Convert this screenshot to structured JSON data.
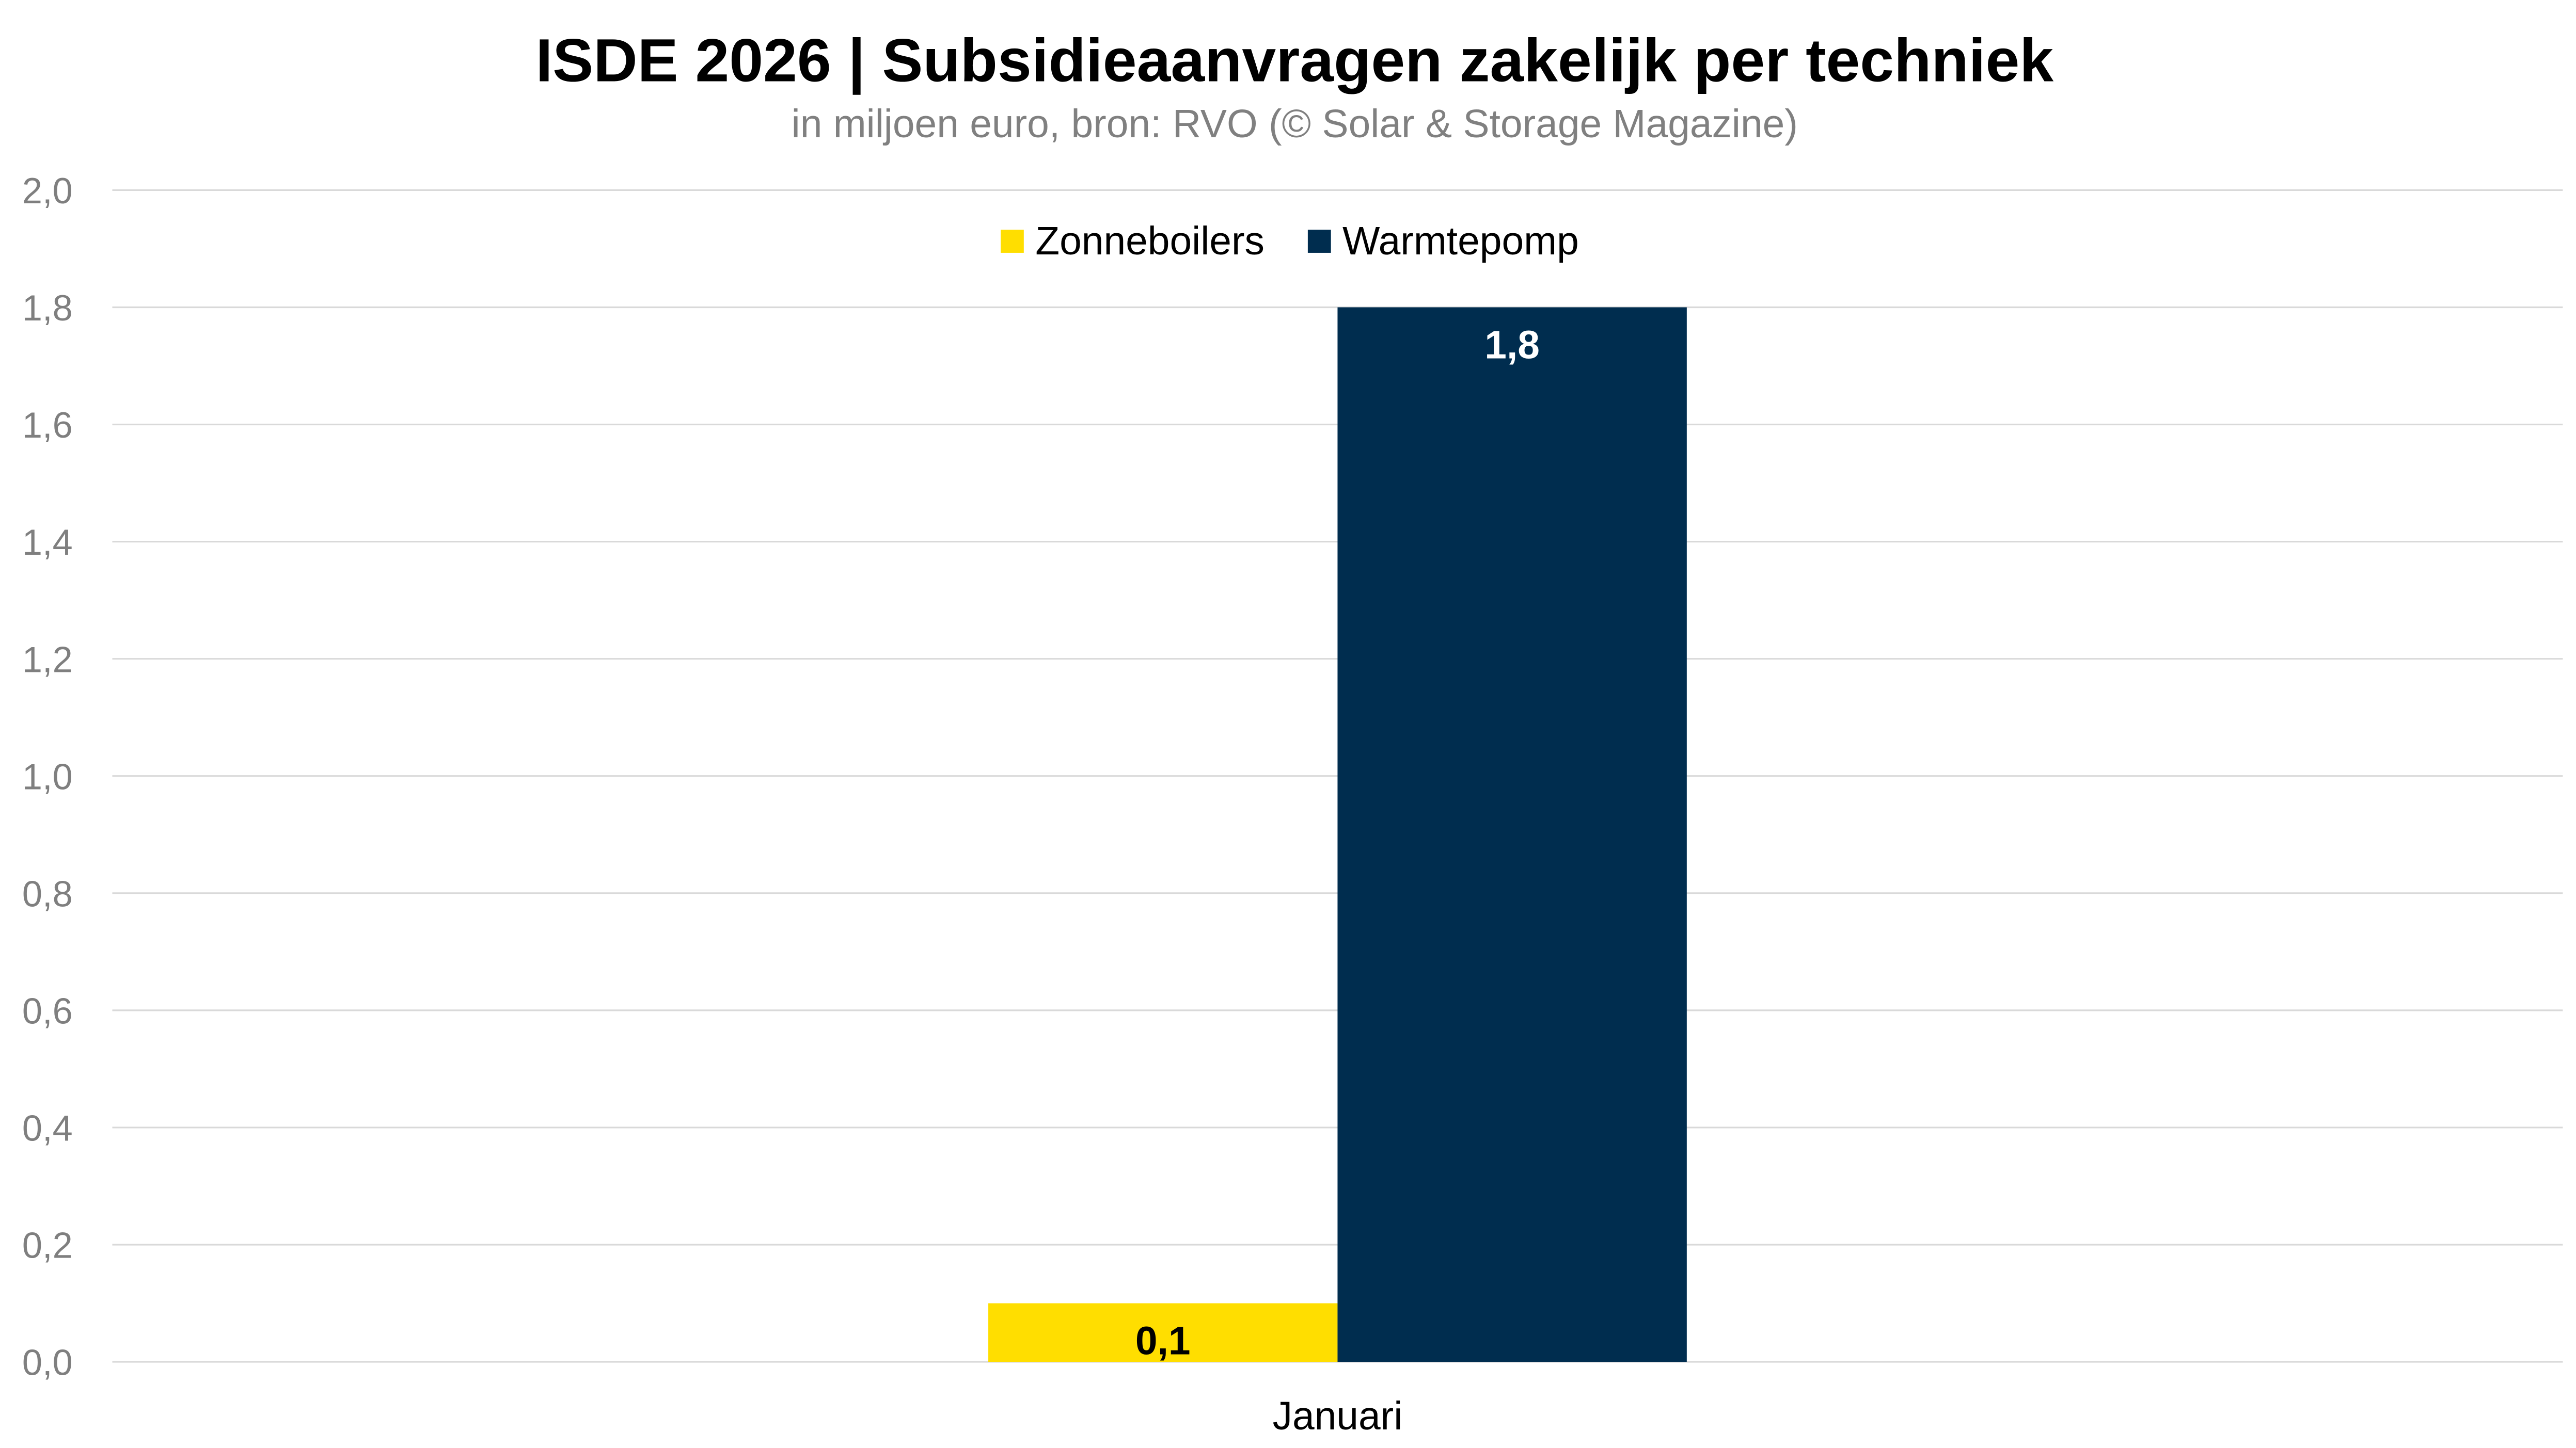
{
  "chart_data": {
    "type": "bar",
    "title": "ISDE 2026 | Subsidieaanvragen zakelijk per techniek",
    "subtitle": "in miljoen euro, bron: RVO (© Solar & Storage Magazine)",
    "xlabel": "",
    "ylabel": "",
    "categories": [
      "Januari"
    ],
    "series": [
      {
        "name": "Zonneboilers",
        "values": [
          0.1
        ],
        "labels": [
          "0,1"
        ],
        "color": "#FFDE00",
        "label_color": "#000000"
      },
      {
        "name": "Warmtepomp",
        "values": [
          1.8
        ],
        "labels": [
          "1,8"
        ],
        "color": "#002D4F",
        "label_color": "#FFFFFF"
      }
    ],
    "ylim": [
      0,
      2.0
    ],
    "yticks": [
      "0,0",
      "0,2",
      "0,4",
      "0,6",
      "0,8",
      "1,0",
      "1,2",
      "1,4",
      "1,6",
      "1,8",
      "2,0"
    ],
    "grid": true,
    "legend_position": "top-center"
  }
}
